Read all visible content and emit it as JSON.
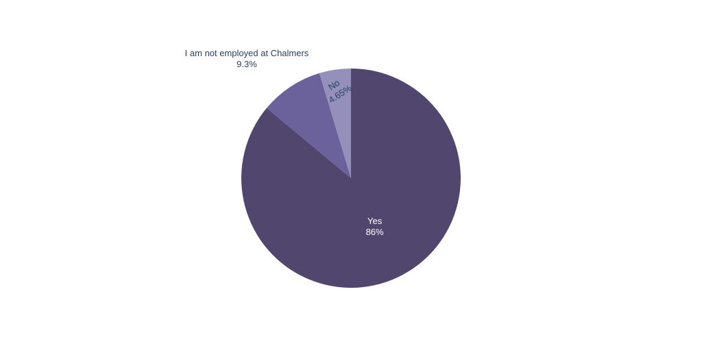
{
  "chart_data": {
    "type": "pie",
    "categories": [
      "Yes",
      "I am not employed at Chalmers",
      "No"
    ],
    "values": [
      86,
      9.3,
      4.65
    ],
    "value_labels": [
      "86%",
      "9.3%",
      "4.65%"
    ],
    "colors": [
      "#51476e",
      "#6b629c",
      "#9590bb"
    ],
    "label_colors": [
      "#ffffff",
      "#2a3f5f",
      "#2a3f5f"
    ],
    "label_placement": [
      "inside",
      "outside",
      "inside-rotated"
    ],
    "start_angle_deg": 90,
    "direction": "clockwise",
    "legend": "none"
  }
}
